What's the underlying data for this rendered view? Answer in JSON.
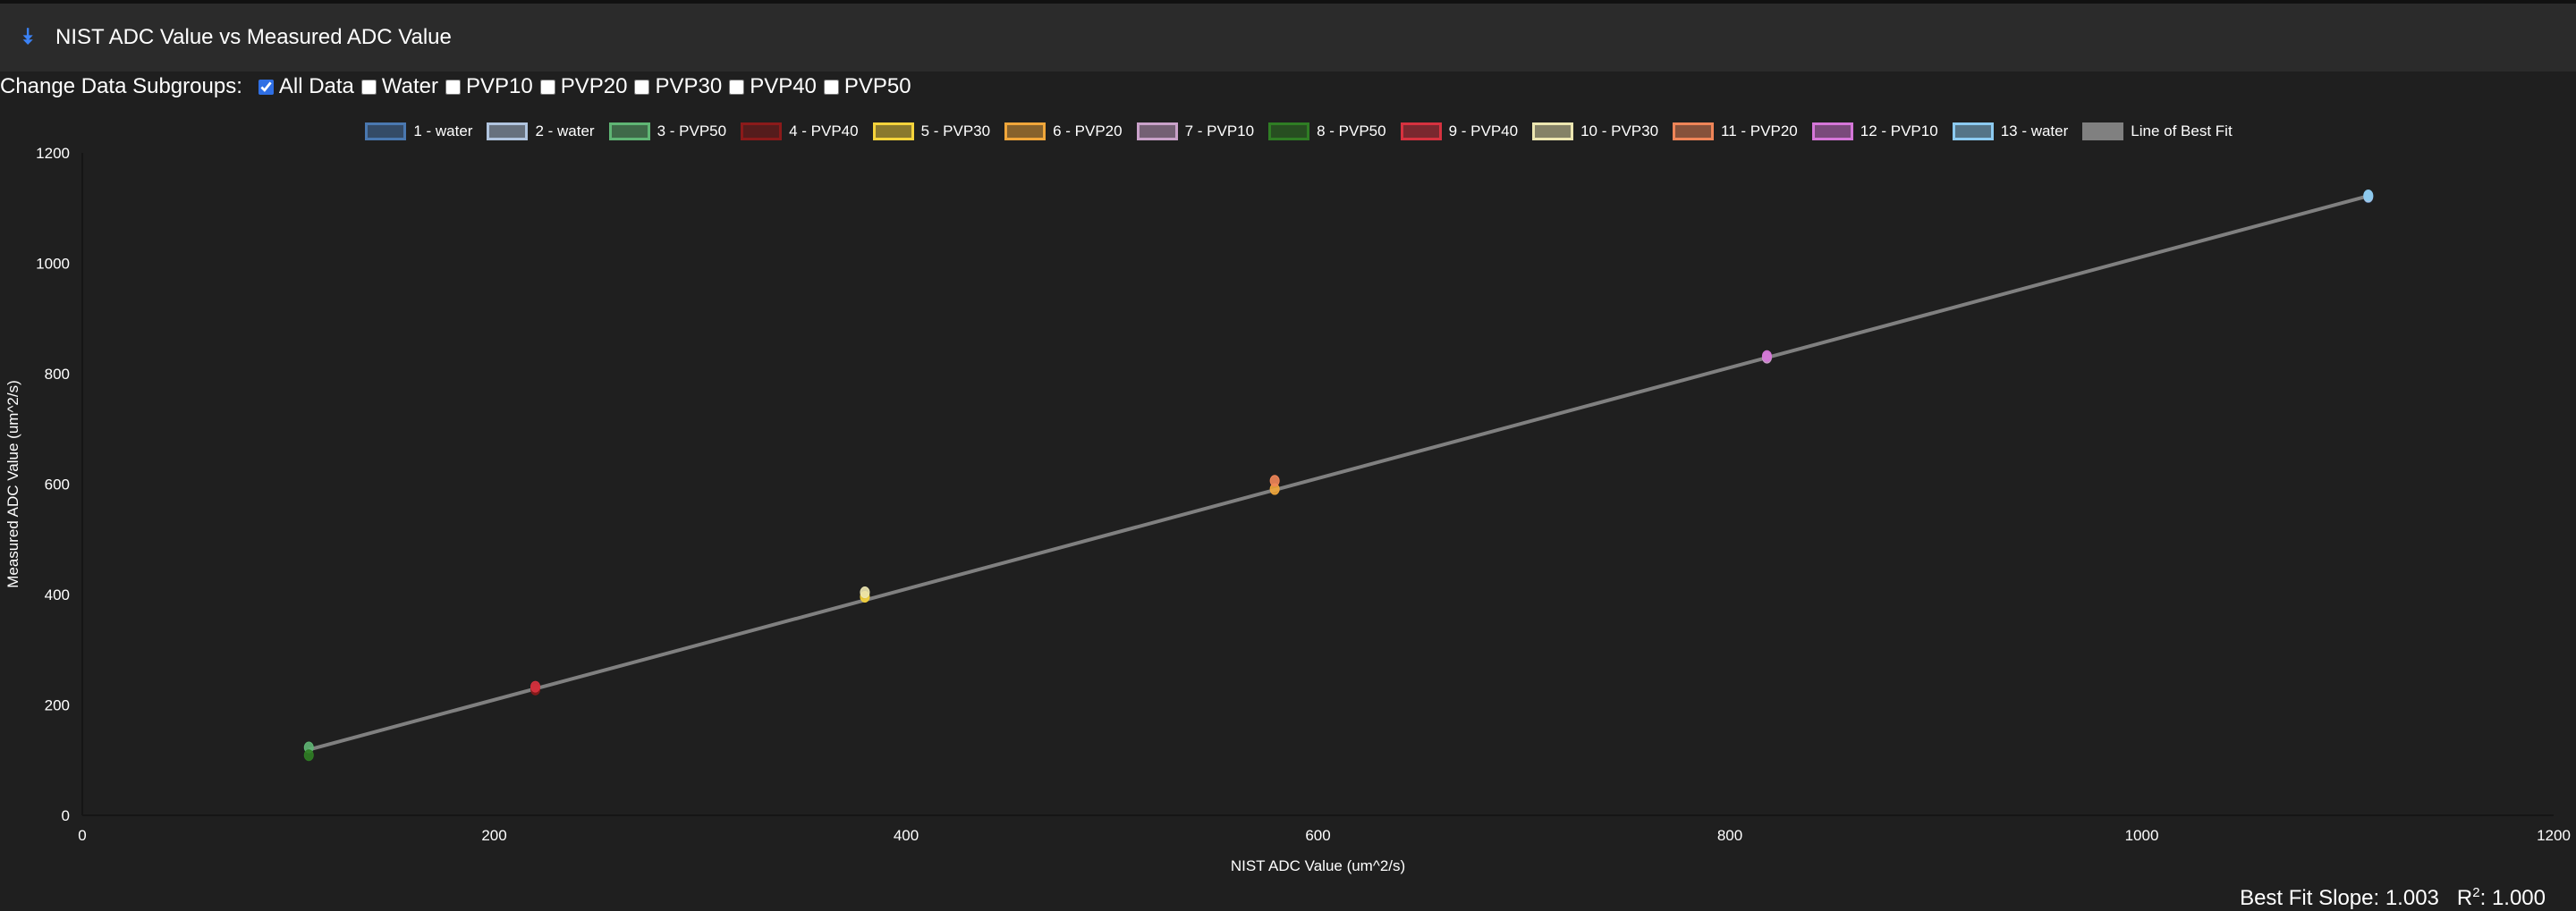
{
  "header": {
    "title": "NIST ADC Value vs Measured ADC Value",
    "icon": "double-chevron-down-icon",
    "accent": "#3b82f6"
  },
  "subgroups": {
    "label": "Change Data Subgroups:",
    "options": [
      {
        "label": "All Data",
        "checked": true
      },
      {
        "label": "Water",
        "checked": false
      },
      {
        "label": "PVP10",
        "checked": false
      },
      {
        "label": "PVP20",
        "checked": false
      },
      {
        "label": "PVP30",
        "checked": false
      },
      {
        "label": "PVP40",
        "checked": false
      },
      {
        "label": "PVP50",
        "checked": false
      }
    ]
  },
  "fit": {
    "slope_label": "Best Fit Slope:",
    "slope": "1.003",
    "r2_label": "R",
    "r2_sup": "2",
    "r2": "1.000"
  },
  "chart_data": {
    "type": "scatter",
    "xlabel": "NIST ADC Value (um^2/s)",
    "ylabel": "Measured ADC Value (um^2/s)",
    "xlim": [
      0,
      1200
    ],
    "ylim": [
      0,
      1200
    ],
    "xticks": [
      "0",
      "200",
      "400",
      "600",
      "800",
      "1000",
      "1200"
    ],
    "yticks": [
      "0",
      "200",
      "400",
      "600",
      "800",
      "1000",
      "1200"
    ],
    "grid": false,
    "legend": "top",
    "series": [
      {
        "name": "1 - water",
        "color": "#4a78b0",
        "x": 1110,
        "y": 1120
      },
      {
        "name": "2 - water",
        "color": "#b0c4de",
        "x": 1110,
        "y": 1121
      },
      {
        "name": "3 - PVP50",
        "color": "#5fb574",
        "x": 110,
        "y": 123
      },
      {
        "name": "4 - PVP40",
        "color": "#8b1a1a",
        "x": 220,
        "y": 228
      },
      {
        "name": "5 - PVP30",
        "color": "#f5d33b",
        "x": 380,
        "y": 396
      },
      {
        "name": "6 - PVP20",
        "color": "#f0a63a",
        "x": 579,
        "y": 591
      },
      {
        "name": "7 - PVP10",
        "color": "#c9a1c9",
        "x": 818,
        "y": 829
      },
      {
        "name": "8 - PVP50",
        "color": "#2f7d24",
        "x": 110,
        "y": 109
      },
      {
        "name": "9 - PVP40",
        "color": "#d6323f",
        "x": 220,
        "y": 233
      },
      {
        "name": "10 - PVP30",
        "color": "#ece6b0",
        "x": 380,
        "y": 404
      },
      {
        "name": "11 - PVP20",
        "color": "#ef8558",
        "x": 579,
        "y": 606
      },
      {
        "name": "12 - PVP10",
        "color": "#d576d8",
        "x": 818,
        "y": 832
      },
      {
        "name": "13 - water",
        "color": "#8ccaf0",
        "x": 1110,
        "y": 1123
      }
    ],
    "best_fit": {
      "name": "Line of Best Fit",
      "color": "#808080",
      "x": [
        110,
        1110
      ],
      "y": [
        119,
        1122
      ]
    }
  }
}
